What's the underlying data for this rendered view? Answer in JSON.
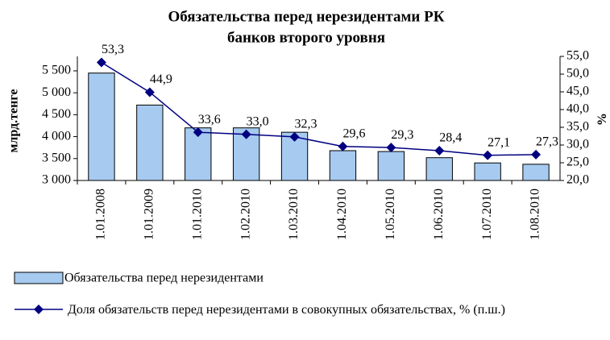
{
  "chart_data": {
    "type": "bar_line",
    "title": [
      "Обязательства перед нерезидентами РК",
      "банков второго уровня"
    ],
    "ylabel": "млрд.тенге",
    "y2label": "%",
    "categories": [
      "1.01.2008",
      "1.01.2009",
      "1.01.2010",
      "1.02.2010",
      "1.03.2010",
      "1.04.2010",
      "1.05.2010",
      "1.06.2010",
      "1.07.2010",
      "1.08.2010"
    ],
    "series": [
      {
        "name": "Обязательства перед нерезидентами",
        "type": "bar",
        "color": "#a6caf0",
        "values": [
          5450,
          4720,
          4200,
          4200,
          4100,
          3680,
          3660,
          3520,
          3400,
          3370
        ]
      },
      {
        "name": "Доля обязательств перед нерезидентами в совокупных обязательствах, % (п.ш.)",
        "type": "line",
        "axis": "y2",
        "color": "#000080",
        "values": [
          53.3,
          44.9,
          33.6,
          33.0,
          32.3,
          29.6,
          29.3,
          28.4,
          27.1,
          27.3
        ],
        "value_labels": [
          "53,3",
          "44,9",
          "33,6",
          "33,0",
          "32,3",
          "29,6",
          "29,3",
          "28,4",
          "27,1",
          "27,3"
        ]
      }
    ],
    "ylim": [
      3000,
      5830
    ],
    "yticks": [
      {
        "value": 3000,
        "label": "3 000"
      },
      {
        "value": 3500,
        "label": "3 500"
      },
      {
        "value": 4000,
        "label": "4 000"
      },
      {
        "value": 4500,
        "label": "4 500"
      },
      {
        "value": 5000,
        "label": "5 000"
      },
      {
        "value": 5500,
        "label": "5 500"
      }
    ],
    "y2lim": [
      20,
      55
    ],
    "y2ticks": [
      {
        "value": 20,
        "label": "20,0"
      },
      {
        "value": 25,
        "label": "25,0"
      },
      {
        "value": 30,
        "label": "30,0"
      },
      {
        "value": 35,
        "label": "35,0"
      },
      {
        "value": 40,
        "label": "40,0"
      },
      {
        "value": 45,
        "label": "45,0"
      },
      {
        "value": 50,
        "label": "50,0"
      },
      {
        "value": 55,
        "label": "55,0"
      }
    ],
    "grid": false
  }
}
